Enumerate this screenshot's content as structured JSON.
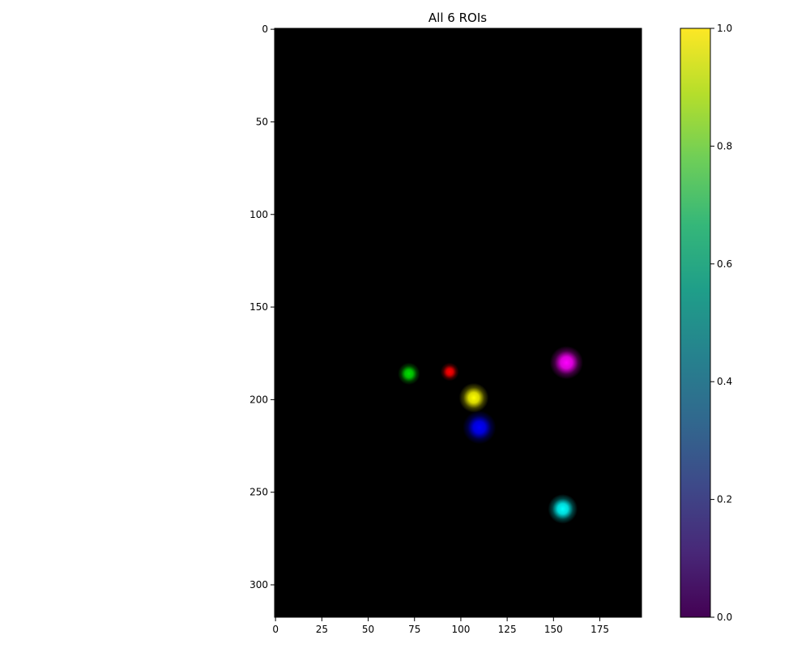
{
  "chart_data": {
    "type": "heatmap",
    "title": "All 6 ROIs",
    "xlabel": "",
    "ylabel": "",
    "image_width": 198,
    "image_height": 318,
    "xticks": [
      0,
      25,
      50,
      75,
      100,
      125,
      150,
      175
    ],
    "yticks": [
      0,
      50,
      100,
      150,
      200,
      250,
      300
    ],
    "background": "#000000",
    "rois": [
      {
        "color": "#ff0000",
        "x": 94,
        "y": 185,
        "radius": 5
      },
      {
        "color": "#00dd00",
        "x": 72,
        "y": 186,
        "radius": 6
      },
      {
        "color": "#0000ff",
        "x": 110,
        "y": 215,
        "radius": 9
      },
      {
        "color": "#ffff00",
        "x": 107,
        "y": 199,
        "radius": 8
      },
      {
        "color": "#ff00ff",
        "x": 157,
        "y": 180,
        "radius": 9
      },
      {
        "color": "#00ffff",
        "x": 155,
        "y": 259,
        "radius": 8
      }
    ],
    "colorbar": {
      "colormap": "viridis",
      "range": [
        0,
        1
      ],
      "ticks": [
        "0.0",
        "0.2",
        "0.4",
        "0.6",
        "0.8",
        "1.0"
      ],
      "stops": [
        "#440154",
        "#482878",
        "#3e4989",
        "#31688e",
        "#26828e",
        "#1f9e89",
        "#35b779",
        "#6ece58",
        "#b5de2b",
        "#fde725"
      ]
    }
  }
}
